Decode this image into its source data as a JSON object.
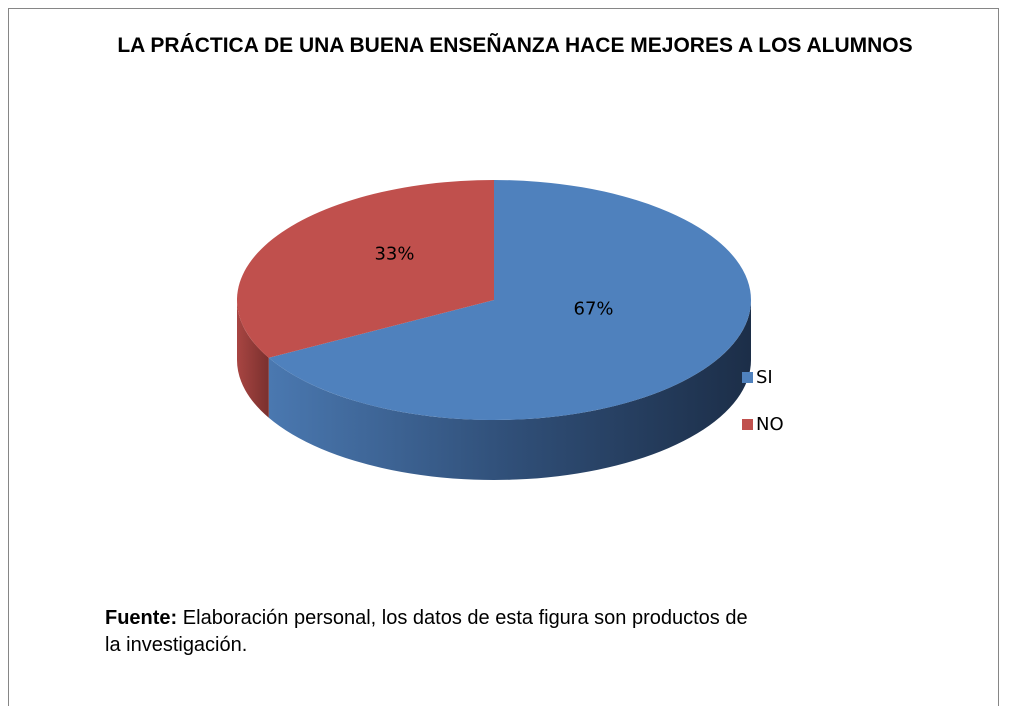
{
  "chart_data": {
    "type": "pie",
    "title": "LA PRÁCTICA DE UNA BUENA ENSEÑANZA HACE MEJORES A LOS ALUMNOS",
    "categories": [
      "SI",
      "NO"
    ],
    "values": [
      67,
      33
    ],
    "value_labels": [
      "67%",
      "33%"
    ],
    "colors": [
      "#4f81bd",
      "#c0504d"
    ],
    "legend": "right"
  },
  "footnote": {
    "label": "Fuente:",
    "text": "Elaboración personal, los datos de esta figura son productos de la investigación."
  }
}
